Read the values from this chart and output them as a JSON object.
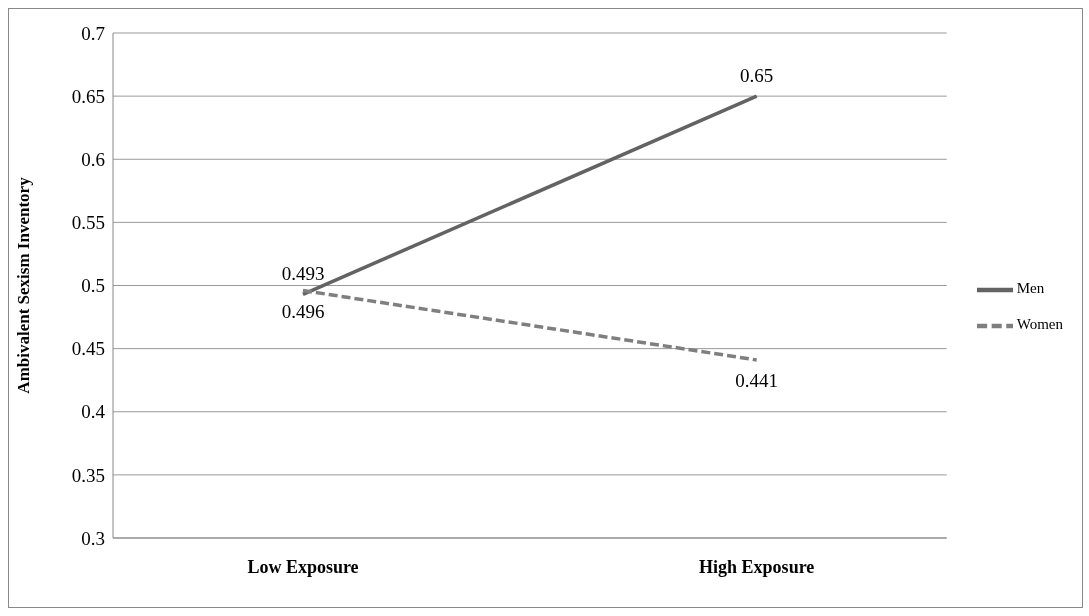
{
  "chart_data": {
    "type": "line",
    "ylabel": "Ambivalent Sexism Inventory",
    "categories": [
      "Low Exposure",
      "High Exposure"
    ],
    "series": [
      {
        "name": "Men",
        "color": "#636363",
        "values": [
          0.493,
          0.65
        ],
        "line_style": "solid"
      },
      {
        "name": "Women",
        "color": "#7f7f7f",
        "values": [
          0.496,
          0.441
        ],
        "line_style": "dashed"
      }
    ],
    "ylim": [
      0.3,
      0.7
    ],
    "yticks": [
      0.3,
      0.35,
      0.4,
      0.45,
      0.5,
      0.55,
      0.6,
      0.65,
      0.7
    ],
    "grid": "y",
    "legend": "right",
    "data_labels": true,
    "marker": "none"
  }
}
